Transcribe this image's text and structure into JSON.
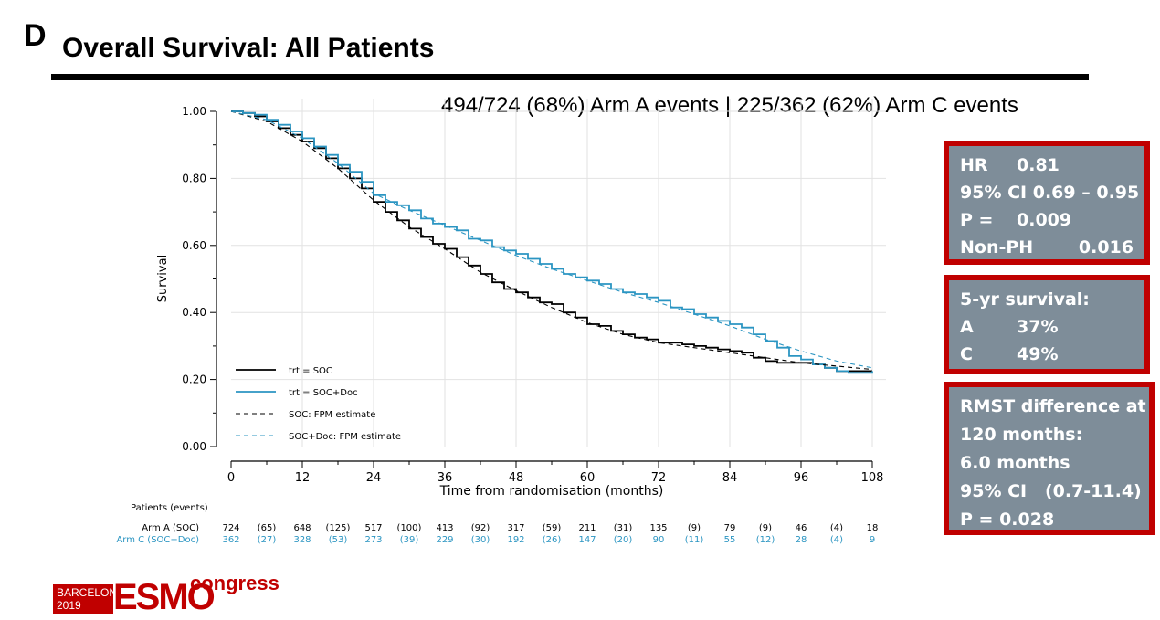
{
  "panel_letter": "D",
  "slide_title": "Overall Survival: All Patients",
  "events_text": "494/724 (68%) Arm A events | 225/362 (62%) Arm C events",
  "hr_box": [
    {
      "k": "HR",
      "v": "0.81"
    },
    {
      "k": "95% CI",
      "v": "0.69 – 0.95"
    },
    {
      "k": "P =",
      "v": "0.009"
    },
    {
      "k": "Non-PH",
      "v": "0.016"
    }
  ],
  "survival_box": {
    "title": "5-yr survival:",
    "rows": [
      {
        "k": "A",
        "v": "37%"
      },
      {
        "k": "C",
        "v": "49%"
      }
    ]
  },
  "rmst_box": [
    "RMST difference at",
    "120 months:",
    "6.0 months",
    "95% CI   (0.7-11.4)",
    "P = 0.028"
  ],
  "logo": {
    "city": "BARCELONA",
    "year": "2019",
    "brand": "ESMO",
    "suffix": "congress"
  },
  "colors": {
    "soc": "#000000",
    "doc": "#2b95c2",
    "box_fill": "#7e8d99",
    "box_border": "#c00000"
  },
  "chart_data": {
    "type": "line",
    "title": "",
    "xlabel": "Time from randomisation (months)",
    "ylabel": "Survival",
    "xlim": [
      0,
      108
    ],
    "ylim": [
      0,
      1
    ],
    "x_ticks": [
      0,
      12,
      24,
      36,
      48,
      60,
      72,
      84,
      96,
      108
    ],
    "y_ticks": [
      "0.00",
      "0.20",
      "0.40",
      "0.60",
      "0.80",
      "1.00"
    ],
    "legend": [
      {
        "label": "trt = SOC",
        "style": "solid",
        "series": "soc"
      },
      {
        "label": "trt = SOC+Doc",
        "style": "solid",
        "series": "doc"
      },
      {
        "label": "SOC: FPM estimate",
        "style": "dashed",
        "series": "soc"
      },
      {
        "label": "SOC+Doc: FPM estimate",
        "style": "dashed",
        "series": "doc"
      }
    ],
    "series": [
      {
        "name": "trt = SOC",
        "key": "soc",
        "x": [
          0,
          2,
          4,
          6,
          8,
          10,
          12,
          14,
          16,
          18,
          20,
          22,
          24,
          26,
          28,
          30,
          32,
          34,
          36,
          38,
          40,
          42,
          44,
          46,
          48,
          50,
          52,
          54,
          56,
          58,
          60,
          62,
          64,
          66,
          68,
          70,
          72,
          74,
          76,
          78,
          80,
          82,
          84,
          86,
          88,
          90,
          92,
          94,
          96,
          98,
          100,
          102,
          104,
          106,
          108
        ],
        "y": [
          1.0,
          0.995,
          0.985,
          0.97,
          0.95,
          0.93,
          0.91,
          0.89,
          0.86,
          0.83,
          0.8,
          0.77,
          0.73,
          0.7,
          0.675,
          0.65,
          0.625,
          0.605,
          0.59,
          0.565,
          0.54,
          0.515,
          0.49,
          0.47,
          0.46,
          0.445,
          0.43,
          0.425,
          0.4,
          0.385,
          0.365,
          0.36,
          0.345,
          0.335,
          0.325,
          0.32,
          0.31,
          0.31,
          0.305,
          0.3,
          0.295,
          0.29,
          0.285,
          0.28,
          0.265,
          0.255,
          0.25,
          0.25,
          0.25,
          0.245,
          0.235,
          0.225,
          0.225,
          0.225,
          0.225
        ]
      },
      {
        "name": "trt = SOC+Doc",
        "key": "doc",
        "x": [
          0,
          2,
          4,
          6,
          8,
          10,
          12,
          14,
          16,
          18,
          20,
          22,
          24,
          26,
          28,
          30,
          32,
          34,
          36,
          38,
          40,
          42,
          44,
          46,
          48,
          50,
          52,
          54,
          56,
          58,
          60,
          62,
          64,
          66,
          68,
          70,
          72,
          74,
          76,
          78,
          80,
          82,
          84,
          86,
          88,
          90,
          92,
          94,
          96,
          98,
          100,
          102,
          104,
          106,
          108
        ],
        "y": [
          1.0,
          0.995,
          0.99,
          0.975,
          0.96,
          0.94,
          0.92,
          0.895,
          0.87,
          0.84,
          0.82,
          0.79,
          0.75,
          0.73,
          0.72,
          0.705,
          0.68,
          0.665,
          0.655,
          0.645,
          0.62,
          0.615,
          0.595,
          0.585,
          0.575,
          0.56,
          0.545,
          0.53,
          0.515,
          0.505,
          0.495,
          0.485,
          0.47,
          0.46,
          0.455,
          0.445,
          0.435,
          0.415,
          0.41,
          0.395,
          0.385,
          0.375,
          0.365,
          0.355,
          0.335,
          0.315,
          0.295,
          0.27,
          0.26,
          0.245,
          0.235,
          0.225,
          0.22,
          0.22,
          0.225
        ]
      },
      {
        "name": "SOC: FPM estimate",
        "key": "soc_fpm",
        "x": [
          0,
          6,
          12,
          18,
          24,
          30,
          36,
          42,
          48,
          54,
          60,
          66,
          72,
          78,
          84,
          90,
          96,
          102,
          108
        ],
        "y": [
          1.0,
          0.97,
          0.91,
          0.83,
          0.735,
          0.655,
          0.59,
          0.52,
          0.465,
          0.415,
          0.37,
          0.335,
          0.31,
          0.295,
          0.28,
          0.265,
          0.25,
          0.24,
          0.23
        ]
      },
      {
        "name": "SOC+Doc: FPM estimate",
        "key": "doc_fpm",
        "x": [
          0,
          6,
          12,
          18,
          24,
          30,
          36,
          42,
          48,
          54,
          60,
          66,
          72,
          78,
          84,
          90,
          96,
          102,
          108
        ],
        "y": [
          1.0,
          0.975,
          0.92,
          0.845,
          0.755,
          0.705,
          0.66,
          0.615,
          0.57,
          0.53,
          0.495,
          0.46,
          0.43,
          0.395,
          0.36,
          0.32,
          0.285,
          0.255,
          0.235
        ]
      }
    ],
    "risk_table": {
      "header": "Patients (events)",
      "rows": [
        {
          "label": "Arm A (SOC)",
          "key": "soc",
          "values": [
            "724",
            "(65)",
            "648",
            "(125)",
            "517",
            "(100)",
            "413",
            "(92)",
            "317",
            "(59)",
            "211",
            "(31)",
            "135",
            "(9)",
            "79",
            "(9)",
            "46",
            "(4)",
            "18"
          ]
        },
        {
          "label": "Arm C (SOC+Doc)",
          "key": "doc",
          "values": [
            "362",
            "(27)",
            "328",
            "(53)",
            "273",
            "(39)",
            "229",
            "(30)",
            "192",
            "(26)",
            "147",
            "(20)",
            "90",
            "(11)",
            "55",
            "(12)",
            "28",
            "(4)",
            "9"
          ]
        }
      ]
    }
  }
}
